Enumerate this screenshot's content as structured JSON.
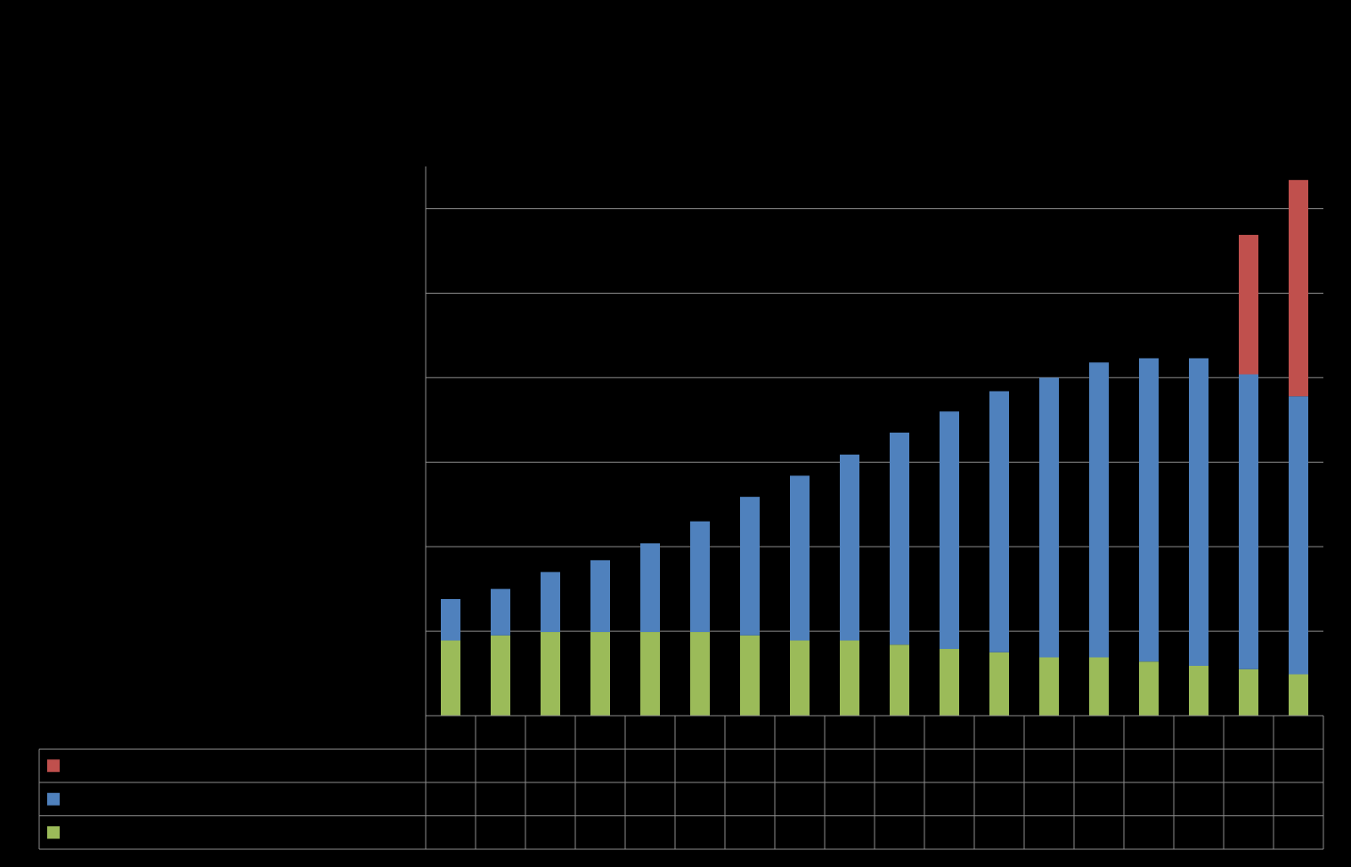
{
  "chart_data": {
    "type": "stacked_bar",
    "categories": [
      null,
      null,
      null,
      null,
      null,
      null,
      null,
      null,
      null,
      null,
      null,
      null,
      null,
      null,
      null,
      null,
      null,
      null
    ],
    "series": [
      {
        "color": "#9bbb59",
        "values": [
          0.89,
          0.95,
          0.99,
          0.99,
          0.99,
          0.99,
          0.95,
          0.89,
          0.89,
          0.84,
          0.79,
          0.75,
          0.69,
          0.69,
          0.64,
          0.59,
          0.55,
          0.49
        ]
      },
      {
        "color": "#4f81bd",
        "values": [
          0.49,
          0.55,
          0.71,
          0.85,
          1.05,
          1.31,
          1.64,
          1.95,
          2.2,
          2.51,
          2.81,
          3.09,
          3.31,
          3.49,
          3.59,
          3.64,
          3.49,
          3.29
        ]
      },
      {
        "color": "#c0504d",
        "values": [
          null,
          null,
          null,
          null,
          null,
          null,
          null,
          null,
          null,
          null,
          null,
          null,
          null,
          null,
          null,
          null,
          1.65,
          2.56
        ]
      }
    ],
    "ylim": [
      0,
      6.5
    ],
    "yticks": [
      0,
      1,
      2,
      3,
      4,
      5,
      6
    ],
    "grid": true
  }
}
